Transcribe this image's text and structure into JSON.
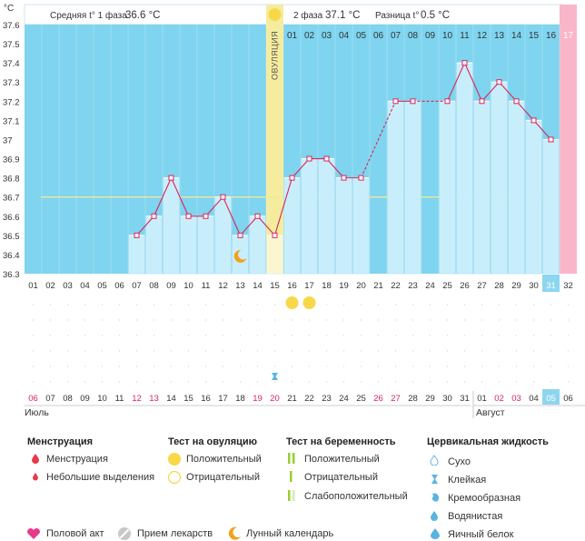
{
  "header": {
    "phase1_label": "Средняя t° 1 фаза",
    "phase1_value": "36.6 °C",
    "phase2_label": "2 фаза",
    "phase2_value": "37.1 °C",
    "diff_label": "Разница t°",
    "diff_value": "0.5 °C"
  },
  "ovulation_label": "ОВУЛЯЦИЯ",
  "chart_data": {
    "type": "bar",
    "title": "",
    "ylabel": "°C",
    "ylim": [
      36.3,
      37.6
    ],
    "yticks": [
      "36.3",
      "36.4",
      "36.5",
      "36.6",
      "36.7",
      "36.8",
      "36.9",
      "37",
      "37.1",
      "37.2",
      "37.3",
      "37.4",
      "37.5",
      "37.6"
    ],
    "ovulation_day": 15,
    "coverline": 36.7,
    "cycle_days": [
      "01",
      "02",
      "03",
      "04",
      "05",
      "06",
      "07",
      "08",
      "09",
      "10",
      "11",
      "12",
      "13",
      "14",
      "15",
      "16",
      "17",
      "18",
      "19",
      "20",
      "21",
      "22",
      "23",
      "24",
      "25",
      "26",
      "27",
      "28",
      "29",
      "30",
      "31",
      "32"
    ],
    "phase2_day_labels": [
      "01",
      "02",
      "03",
      "04",
      "05",
      "06",
      "07",
      "08",
      "09",
      "10",
      "11",
      "12",
      "13",
      "14",
      "15",
      "16",
      "17"
    ],
    "values": [
      null,
      null,
      null,
      null,
      null,
      null,
      36.5,
      36.6,
      36.8,
      36.6,
      36.6,
      36.7,
      36.5,
      36.6,
      36.5,
      36.8,
      36.9,
      36.9,
      36.8,
      36.8,
      null,
      37.2,
      37.2,
      null,
      37.2,
      37.4,
      37.2,
      37.3,
      37.2,
      37.1,
      37.0,
      null
    ],
    "dashed_segments": [
      [
        20,
        22
      ],
      [
        23,
        25
      ]
    ],
    "ovulation_test_positive_days": [
      16,
      17
    ],
    "lunar_day": 13,
    "cervical_sticky_day": 15,
    "dates": [
      "06",
      "07",
      "08",
      "09",
      "10",
      "11",
      "12",
      "13",
      "14",
      "15",
      "16",
      "17",
      "18",
      "19",
      "20",
      "21",
      "22",
      "23",
      "24",
      "25",
      "26",
      "27",
      "28",
      "29",
      "30",
      "31",
      "01",
      "02",
      "03",
      "04",
      "05",
      "06"
    ],
    "red_date_indices": [
      0,
      6,
      7,
      13,
      14,
      20,
      21,
      27,
      28
    ],
    "current_day_index": 30,
    "months": [
      "Июль",
      "Август"
    ],
    "colors": {
      "sky": "#7fd4ef",
      "bar": "#c9eefb",
      "ovulation": "#f5ec9e",
      "line": "#d9245b",
      "coverline": "#f0e89a",
      "pink": "#f9b6c9",
      "today": "#8dd6f0",
      "sun": "#f8d749"
    }
  },
  "legend": {
    "menstruation": {
      "title": "Менструация",
      "items": [
        "Менструация",
        "Небольшие выделения"
      ]
    },
    "ovulation_test": {
      "title": "Тест на овуляцию",
      "items": [
        "Положительный",
        "Отрицательный"
      ]
    },
    "pregnancy_test": {
      "title": "Тест на беременность",
      "items": [
        "Положительный",
        "Отрицательный",
        "Слабоположительный"
      ]
    },
    "cervical": {
      "title": "Цервикальная жидкость",
      "items": [
        "Сухо",
        "Клейкая",
        "Кремообразная",
        "Водянистая",
        "Яичный белок"
      ]
    },
    "bottom": [
      "Половой акт",
      "Прием лекарств",
      "Лунный календарь"
    ]
  }
}
